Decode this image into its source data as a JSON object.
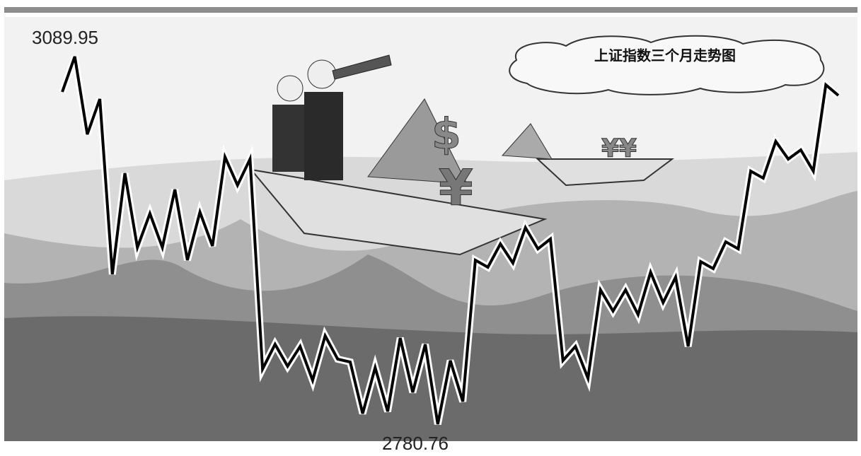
{
  "chart_data": {
    "type": "line",
    "title": "上证指数三个月走势图",
    "color": "#000000",
    "values": [
      3060.22,
      3089.95,
      3024.55,
      3054.28,
      2906.82,
      2991.84,
      2929.41,
      2957.95,
      2929.41,
      2978.17,
      2918.71,
      2959.14,
      2930.6,
      3005.52,
      2981.73,
      3003.74,
      2827.14,
      2847.95,
      2829.52,
      2846.17,
      2817.63,
      2855.09,
      2835.46,
      2833.08,
      2789.68,
      2828.33,
      2791.46,
      2853.3,
      2807.52,
      2847.95,
      2780.76,
      2834.27,
      2799.79,
      2918.71,
      2912.76,
      2932.38,
      2916.33,
      2946.06,
      2928.22,
      2936.55,
      2834.27,
      2846.17,
      2819.41,
      2893.73,
      2875.9,
      2893.73,
      2872.92,
      2908.6,
      2883.03,
      2904.44,
      2846.17,
      2917.52,
      2911.57,
      2934.17,
      2928.22,
      2993.63,
      2987.68,
      3018.6,
      3003.74,
      3011.46,
      2993.63,
      3066.17,
      3057.25
    ]
  }
}
